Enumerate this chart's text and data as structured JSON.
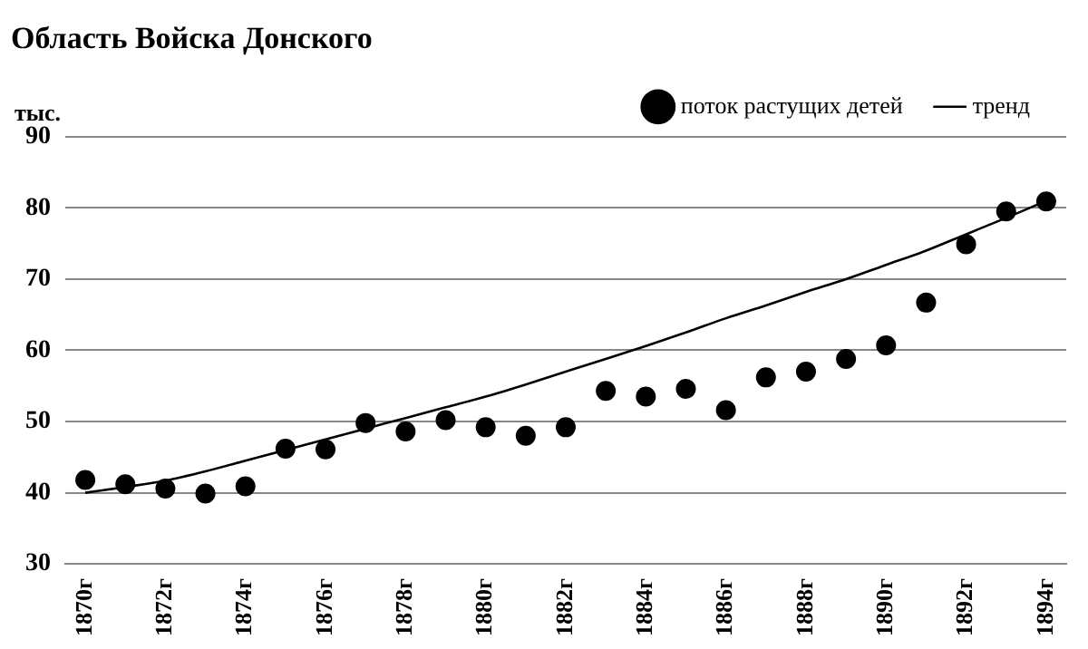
{
  "chart_data": {
    "type": "scatter",
    "title": "Область Войска Донского",
    "ylabel": "тыс.",
    "categories": [
      "1870г",
      null,
      "1872г",
      null,
      "1874г",
      null,
      "1876г",
      null,
      "1878г",
      null,
      "1880г",
      null,
      "1882г",
      null,
      "1884г",
      null,
      "1886г",
      null,
      "1888г",
      null,
      "1890г",
      null,
      "1892г",
      null,
      "1894г"
    ],
    "series": [
      {
        "name": "поток растущих детей",
        "color": "#000000",
        "marker": "circle",
        "values": [
          41.8,
          41.2,
          40.6,
          39.9,
          40.9,
          46.2,
          46.1,
          49.8,
          48.6,
          50.2,
          49.2,
          48.0,
          49.2,
          54.3,
          53.5,
          54.6,
          51.6,
          56.2,
          57.0,
          58.8,
          60.7,
          66.7,
          74.9,
          79.5,
          80.9
        ]
      },
      {
        "name": "тренд",
        "type": "line",
        "color": "#000000",
        "marker": "none",
        "line_style": "solid",
        "values": [
          40.0,
          40.8,
          41.7,
          43.0,
          44.5,
          46.0,
          47.5,
          49.0,
          50.5,
          52.0,
          53.5,
          55.2,
          57.0,
          58.8,
          60.6,
          62.5,
          64.5,
          66.3,
          68.2,
          70.0,
          72.0,
          74.0,
          76.3,
          78.6,
          81.0
        ]
      }
    ],
    "ylim": [
      30,
      90
    ],
    "yticks": [
      30,
      40,
      50,
      60,
      70,
      80,
      90
    ],
    "grid": "y",
    "legend": "top right"
  }
}
